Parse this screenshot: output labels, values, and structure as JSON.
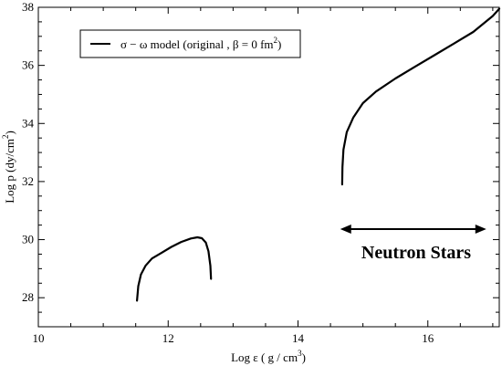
{
  "chart_data": {
    "type": "line",
    "xlim": [
      10,
      17.1
    ],
    "ylim": [
      27,
      38
    ],
    "x_ticks": [
      10,
      12,
      14,
      16
    ],
    "y_ticks": [
      28,
      30,
      32,
      34,
      36,
      38
    ],
    "xlabel": {
      "prefix": "Log ε  ( g / cm",
      "sup": "3",
      "suffix": ")"
    },
    "ylabel": {
      "prefix": "Log p  (dy/cm",
      "sup": "2",
      "suffix": ")"
    },
    "legend": {
      "text": "σ − ω  model (original , β = 0 fm",
      "sup": "2",
      "suffix": ")",
      "position": "top-left"
    },
    "annotation": "Neutron Stars",
    "arrow_range": [
      14.65,
      16.9
    ],
    "series": [
      {
        "name": "σ − ω  model (original , β = 0 fm2)",
        "segments": [
          [
            [
              11.52,
              27.9
            ],
            [
              11.54,
              28.4
            ],
            [
              11.58,
              28.8
            ],
            [
              11.65,
              29.1
            ],
            [
              11.75,
              29.35
            ],
            [
              11.9,
              29.55
            ],
            [
              12.05,
              29.75
            ],
            [
              12.2,
              29.92
            ],
            [
              12.35,
              30.04
            ],
            [
              12.45,
              30.08
            ],
            [
              12.52,
              30.05
            ],
            [
              12.58,
              29.9
            ],
            [
              12.62,
              29.6
            ],
            [
              12.65,
              29.1
            ],
            [
              12.66,
              28.65
            ]
          ],
          [
            [
              14.68,
              31.9
            ],
            [
              14.685,
              32.5
            ],
            [
              14.7,
              33.1
            ],
            [
              14.75,
              33.7
            ],
            [
              14.85,
              34.2
            ],
            [
              15.0,
              34.7
            ],
            [
              15.2,
              35.1
            ],
            [
              15.5,
              35.55
            ],
            [
              15.8,
              35.95
            ],
            [
              16.1,
              36.35
            ],
            [
              16.4,
              36.75
            ],
            [
              16.7,
              37.15
            ],
            [
              17.0,
              37.7
            ],
            [
              17.1,
              37.95
            ]
          ]
        ]
      }
    ]
  }
}
